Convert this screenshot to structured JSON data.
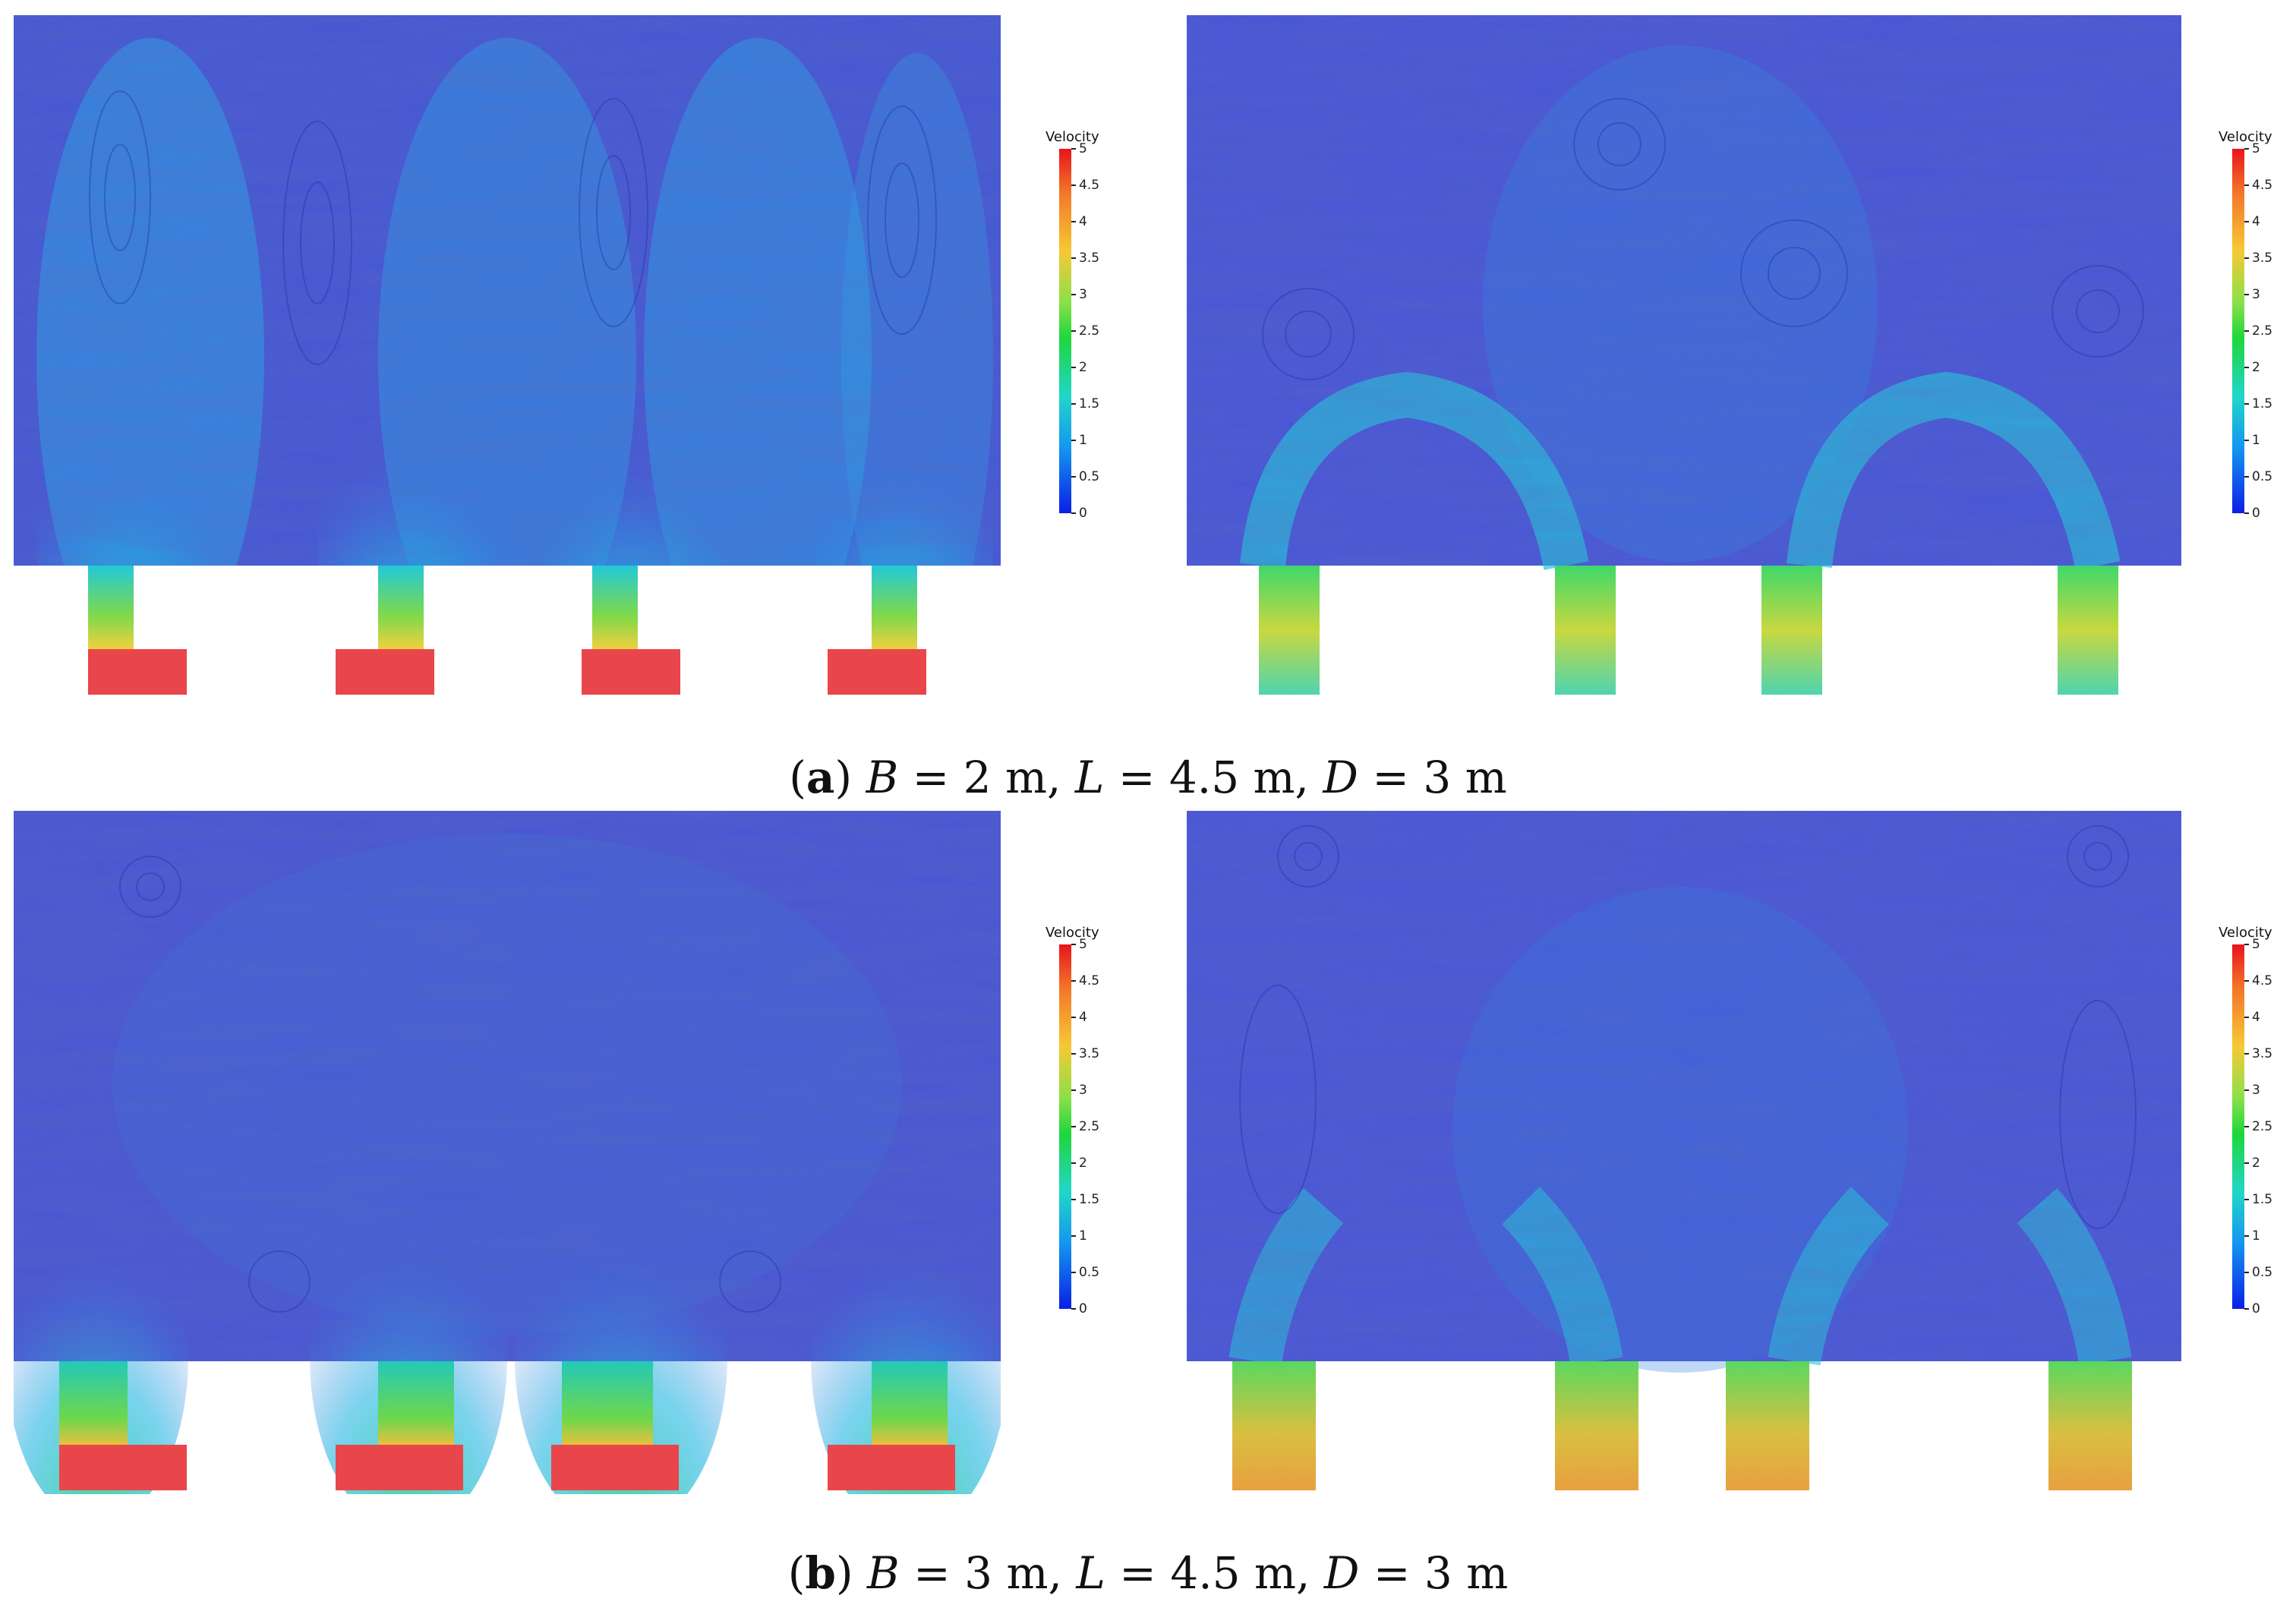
{
  "legend": {
    "title": "Velocity",
    "ticks": [
      "5",
      "4.5",
      "4",
      "3.5",
      "3",
      "2.5",
      "2",
      "1.5",
      "1",
      "0.5",
      "0"
    ],
    "range": [
      0,
      5
    ]
  },
  "captions": {
    "a": {
      "open": "(",
      "letter": "a",
      "close": ")",
      "b_var": "B",
      "b_val": " = 2 m, ",
      "l_var": "L",
      "l_val": " = 4.5 m, ",
      "d_var": "D",
      "d_val": " = 3 m"
    },
    "b": {
      "open": "(",
      "letter": "b",
      "close": ")",
      "b_var": "B",
      "b_val": " = 3 m, ",
      "l_var": "L",
      "l_val": " = 4.5 m, ",
      "d_var": "D",
      "d_val": " = 3 m"
    }
  },
  "colors": {
    "field": "#4a57d6",
    "low": "#2a3fd0",
    "mid": "#22c5df",
    "high": "#e8141b"
  }
}
